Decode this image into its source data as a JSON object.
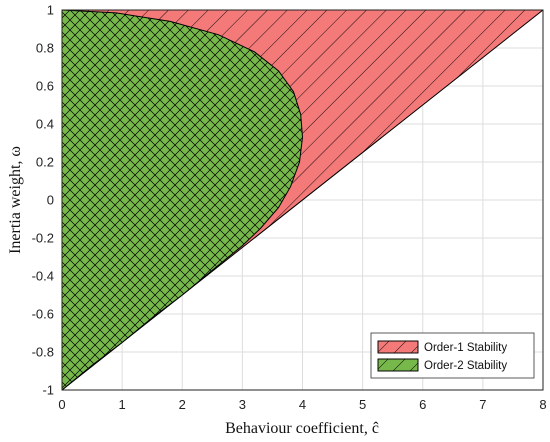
{
  "chart_data": {
    "type": "area",
    "xlabel": "Behaviour coefficient, ĉ",
    "ylabel": "Inertia weight, ω",
    "xlim": [
      0,
      8
    ],
    "ylim": [
      -1,
      1
    ],
    "x_ticks": [
      0,
      1,
      2,
      3,
      4,
      5,
      6,
      7,
      8
    ],
    "y_ticks": [
      -1,
      -0.8,
      -0.6,
      -0.4,
      -0.2,
      0,
      0.2,
      0.4,
      0.6,
      0.8,
      1
    ],
    "grid": true,
    "legend_position": "bottom-right",
    "series": [
      {
        "name": "Order-1 Stability",
        "color": "#f47a7a",
        "hatch": "single diagonal",
        "boundary": [
          [
            0,
            -1
          ],
          [
            8,
            1
          ],
          [
            0,
            1
          ]
        ]
      },
      {
        "name": "Order-2 Stability",
        "color": "#77b84a",
        "hatch": "cross",
        "boundary": [
          [
            0,
            -1
          ],
          [
            0.5,
            -0.87
          ],
          [
            1,
            -0.75
          ],
          [
            1.5,
            -0.62
          ],
          [
            2,
            -0.5
          ],
          [
            2.5,
            -0.37
          ],
          [
            3,
            -0.24
          ],
          [
            3.3,
            -0.15
          ],
          [
            3.6,
            -0.04
          ],
          [
            3.8,
            0.07
          ],
          [
            3.95,
            0.2
          ],
          [
            4,
            0.33
          ],
          [
            3.97,
            0.45
          ],
          [
            3.85,
            0.57
          ],
          [
            3.6,
            0.68
          ],
          [
            3.2,
            0.78
          ],
          [
            2.6,
            0.87
          ],
          [
            1.8,
            0.94
          ],
          [
            0.9,
            0.985
          ],
          [
            0,
            1
          ]
        ]
      }
    ]
  }
}
